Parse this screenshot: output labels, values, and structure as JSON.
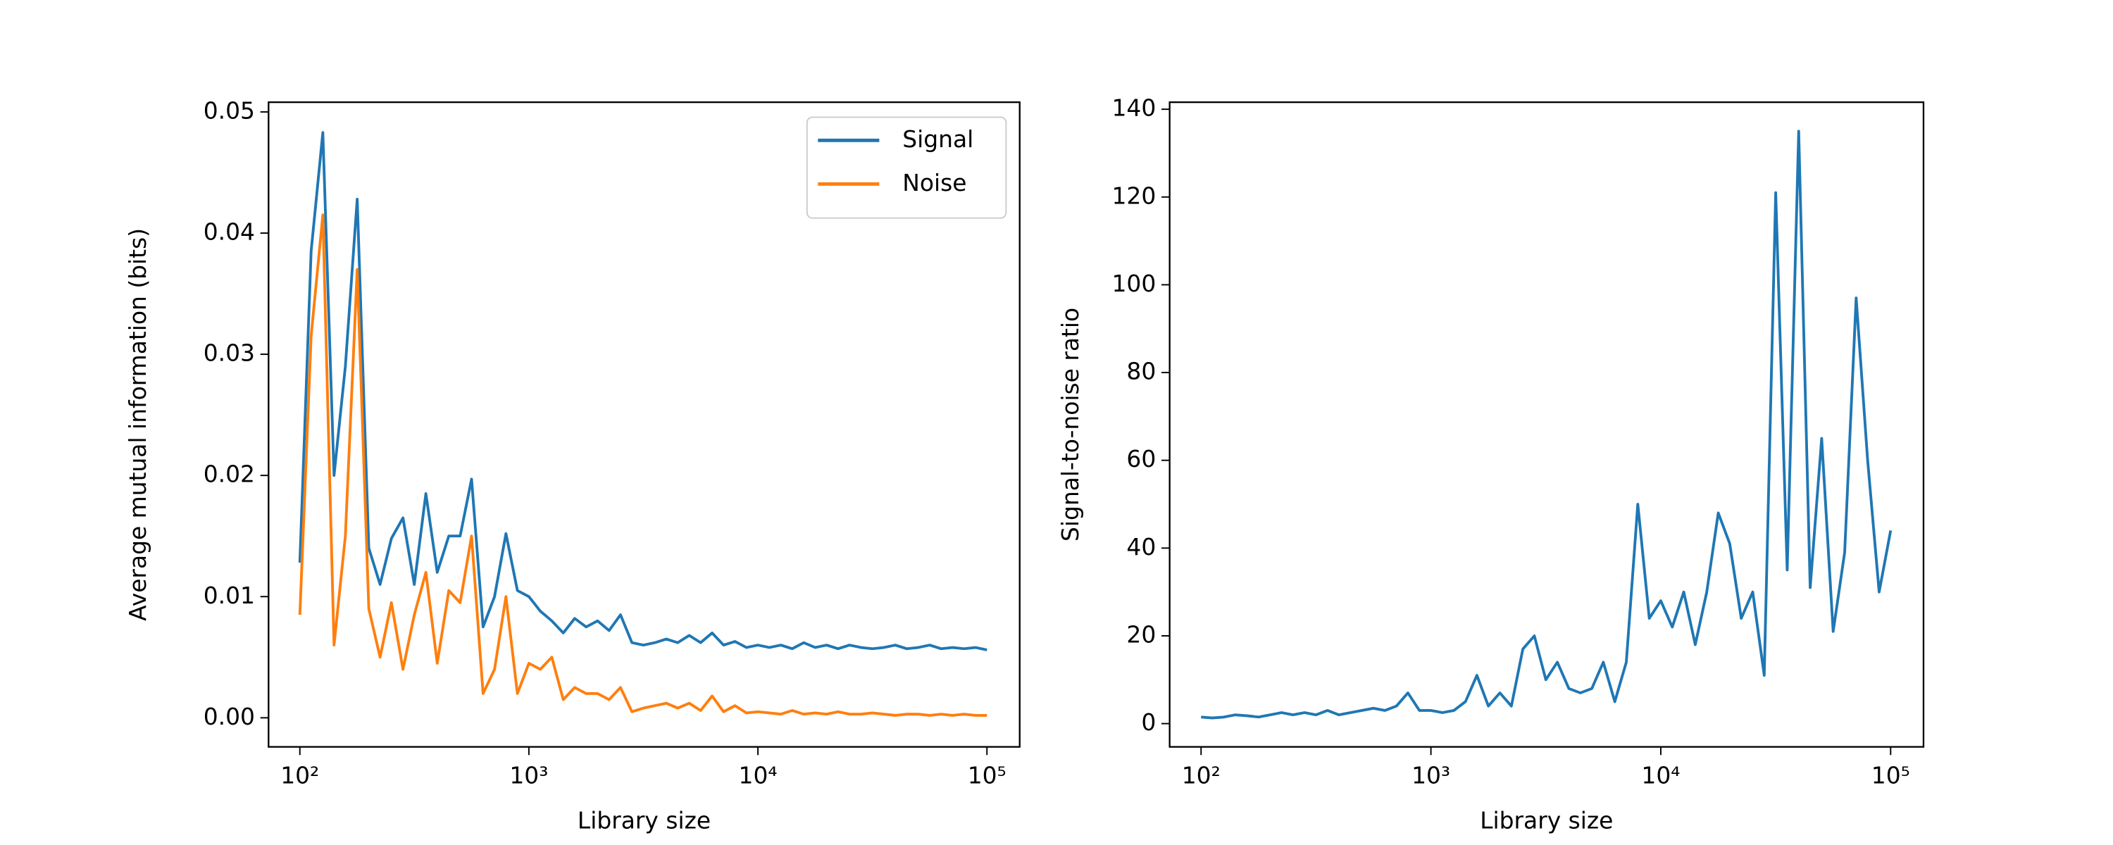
{
  "chart_data": [
    {
      "type": "line",
      "xlabel": "Library size",
      "ylabel": "Average mutual information (bits)",
      "xscale": "log",
      "xlim": [
        73,
        139000
      ],
      "ylim": [
        -0.0024,
        0.0508
      ],
      "xticks": [
        {
          "value": 100,
          "label": "10²"
        },
        {
          "value": 1000,
          "label": "10³"
        },
        {
          "value": 10000,
          "label": "10⁴"
        },
        {
          "value": 100000,
          "label": "10⁵"
        }
      ],
      "yticks": [
        {
          "value": 0,
          "label": "0.00"
        },
        {
          "value": 0.01,
          "label": "0.01"
        },
        {
          "value": 0.02,
          "label": "0.02"
        },
        {
          "value": 0.03,
          "label": "0.03"
        },
        {
          "value": 0.04,
          "label": "0.04"
        },
        {
          "value": 0.05,
          "label": "0.05"
        }
      ],
      "legend": "upper right",
      "x": [
        100,
        112,
        126,
        141,
        158,
        178,
        200,
        224,
        251,
        282,
        316,
        355,
        398,
        447,
        501,
        562,
        631,
        708,
        794,
        891,
        1000,
        1122,
        1259,
        1413,
        1585,
        1778,
        1995,
        2239,
        2512,
        2818,
        3162,
        3548,
        3981,
        4467,
        5012,
        5623,
        6310,
        7079,
        7943,
        8913,
        10000,
        11220,
        12589,
        14125,
        15849,
        17783,
        19953,
        22387,
        25119,
        28184,
        31623,
        35481,
        39811,
        44668,
        50119,
        56234,
        63096,
        70795,
        79433,
        89125,
        100000
      ],
      "series": [
        {
          "name": "Signal",
          "color": "#1f77b4",
          "values": [
            0.0128,
            0.0385,
            0.0483,
            0.02,
            0.029,
            0.0428,
            0.014,
            0.011,
            0.0148,
            0.0165,
            0.011,
            0.0185,
            0.012,
            0.015,
            0.015,
            0.0197,
            0.0075,
            0.01,
            0.0152,
            0.0105,
            0.01,
            0.0088,
            0.008,
            0.007,
            0.0082,
            0.0075,
            0.008,
            0.0072,
            0.0085,
            0.0062,
            0.006,
            0.0062,
            0.0065,
            0.0062,
            0.0068,
            0.0062,
            0.007,
            0.006,
            0.0063,
            0.0058,
            0.006,
            0.0058,
            0.006,
            0.0057,
            0.0062,
            0.0058,
            0.006,
            0.0057,
            0.006,
            0.0058,
            0.0057,
            0.0058,
            0.006,
            0.0057,
            0.0058,
            0.006,
            0.0057,
            0.0058,
            0.0057,
            0.0058,
            0.0056
          ]
        },
        {
          "name": "Noise",
          "color": "#ff7f0e",
          "values": [
            0.0085,
            0.0315,
            0.0415,
            0.006,
            0.015,
            0.037,
            0.009,
            0.005,
            0.0095,
            0.004,
            0.0085,
            0.012,
            0.0045,
            0.0105,
            0.0095,
            0.015,
            0.002,
            0.004,
            0.01,
            0.002,
            0.0045,
            0.004,
            0.005,
            0.0015,
            0.0025,
            0.002,
            0.002,
            0.0015,
            0.0025,
            0.0005,
            0.0008,
            0.001,
            0.0012,
            0.0008,
            0.0012,
            0.0006,
            0.0018,
            0.0005,
            0.001,
            0.0004,
            0.0005,
            0.0004,
            0.0003,
            0.0006,
            0.0003,
            0.0004,
            0.0003,
            0.0005,
            0.0003,
            0.0003,
            0.0004,
            0.0003,
            0.0002,
            0.0003,
            0.0003,
            0.0002,
            0.0003,
            0.0002,
            0.0003,
            0.0002,
            0.0002
          ]
        }
      ]
    },
    {
      "type": "line",
      "xlabel": "Library size",
      "ylabel": "Signal-to-noise ratio",
      "xscale": "log",
      "xlim": [
        73,
        139000
      ],
      "ylim": [
        -5.3,
        141.6
      ],
      "xticks": [
        {
          "value": 100,
          "label": "10²"
        },
        {
          "value": 1000,
          "label": "10³"
        },
        {
          "value": 10000,
          "label": "10⁴"
        },
        {
          "value": 100000,
          "label": "10⁵"
        }
      ],
      "yticks": [
        0,
        20,
        40,
        60,
        80,
        100,
        120,
        140
      ],
      "x": [
        100,
        112,
        126,
        141,
        158,
        178,
        200,
        224,
        251,
        282,
        316,
        355,
        398,
        447,
        501,
        562,
        631,
        708,
        794,
        891,
        1000,
        1122,
        1259,
        1413,
        1585,
        1778,
        1995,
        2239,
        2512,
        2818,
        3162,
        3548,
        3981,
        4467,
        5012,
        5623,
        6310,
        7079,
        7943,
        8913,
        10000,
        11220,
        12589,
        14125,
        15849,
        17783,
        19953,
        22387,
        25119,
        28184,
        31623,
        35481,
        39811,
        44668,
        50119,
        56234,
        63096,
        70795,
        79433,
        89125,
        100000
      ],
      "color": "#1f77b4",
      "values": [
        1.5,
        1.3,
        1.5,
        2,
        1.8,
        1.5,
        2,
        2.5,
        2,
        2.5,
        2,
        3,
        2,
        2.5,
        3,
        3.5,
        3,
        4,
        7,
        3,
        3,
        2.5,
        3,
        5,
        11,
        4,
        7,
        4,
        17,
        20,
        10,
        14,
        8,
        7,
        8,
        14,
        5,
        14,
        50,
        24,
        28,
        22,
        30,
        18,
        30,
        48,
        41,
        24,
        30,
        11,
        121,
        35,
        135,
        31,
        65,
        21,
        39,
        97,
        60,
        30,
        44
      ]
    }
  ]
}
